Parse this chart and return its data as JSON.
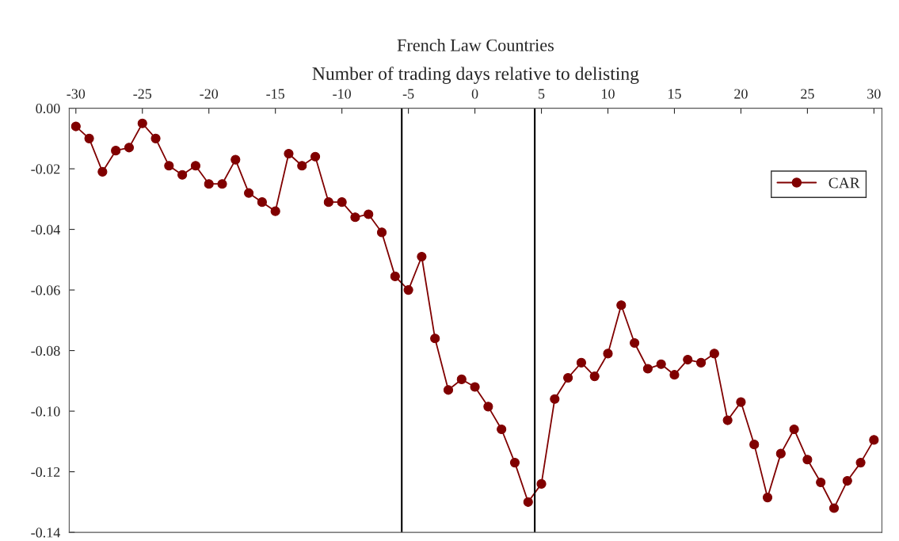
{
  "chart_data": {
    "type": "line",
    "title": "French Law Countries",
    "xlabel": "Number of trading days relative to delisting",
    "x": [
      -30,
      -29,
      -28,
      -27,
      -26,
      -25,
      -24,
      -23,
      -22,
      -21,
      -20,
      -19,
      -18,
      -17,
      -16,
      -15,
      -14,
      -13,
      -12,
      -11,
      -10,
      -9,
      -8,
      -7,
      -6,
      -5,
      -4,
      -3,
      -2,
      -1,
      0,
      1,
      2,
      3,
      4,
      5,
      6,
      7,
      8,
      9,
      10,
      11,
      12,
      13,
      14,
      15,
      16,
      17,
      18,
      19,
      20,
      21,
      22,
      23,
      24,
      25,
      26,
      27,
      28,
      29,
      30
    ],
    "series": [
      {
        "name": "CAR",
        "color": "#800000",
        "values": [
          -0.006,
          -0.01,
          -0.021,
          -0.014,
          -0.013,
          -0.005,
          -0.01,
          -0.019,
          -0.022,
          -0.019,
          -0.025,
          -0.025,
          -0.017,
          -0.028,
          -0.031,
          -0.034,
          -0.015,
          -0.019,
          -0.016,
          -0.031,
          -0.031,
          -0.036,
          -0.035,
          -0.041,
          -0.0555,
          -0.06,
          -0.049,
          -0.076,
          -0.093,
          -0.0895,
          -0.092,
          -0.0985,
          -0.106,
          -0.117,
          -0.13,
          -0.124,
          -0.096,
          -0.089,
          -0.084,
          -0.0885,
          -0.081,
          -0.065,
          -0.0775,
          -0.086,
          -0.0845,
          -0.088,
          -0.083,
          -0.084,
          -0.081,
          -0.103,
          -0.097,
          -0.111,
          -0.1285,
          -0.114,
          -0.106,
          -0.116,
          -0.1235,
          -0.132,
          -0.123,
          -0.117,
          -0.1095
        ]
      }
    ],
    "xlim": [
      -30.5,
      30.6
    ],
    "xticks": [
      -30,
      -25,
      -20,
      -15,
      -10,
      -5,
      0,
      5,
      10,
      15,
      20,
      25,
      30
    ],
    "ylim": [
      -0.14,
      0
    ],
    "yticks": [
      {
        "value": -0.14,
        "label": "-0.14"
      },
      {
        "value": -0.12,
        "label": "-0.12"
      },
      {
        "value": -0.1,
        "label": "-0.10"
      },
      {
        "value": -0.08,
        "label": "-0.08"
      },
      {
        "value": -0.06,
        "label": "-0.06"
      },
      {
        "value": -0.04,
        "label": "-0.04"
      },
      {
        "value": -0.02,
        "label": "-0.02"
      },
      {
        "value": 0,
        "label": "0.00"
      }
    ],
    "ref_lines": [
      {
        "axis": "x",
        "value": -5.5,
        "color": "#000000"
      },
      {
        "axis": "x",
        "value": 4.5,
        "color": "#000000"
      }
    ],
    "marker": "circle",
    "line_style": "solid",
    "grid": false,
    "legend": "top right"
  }
}
